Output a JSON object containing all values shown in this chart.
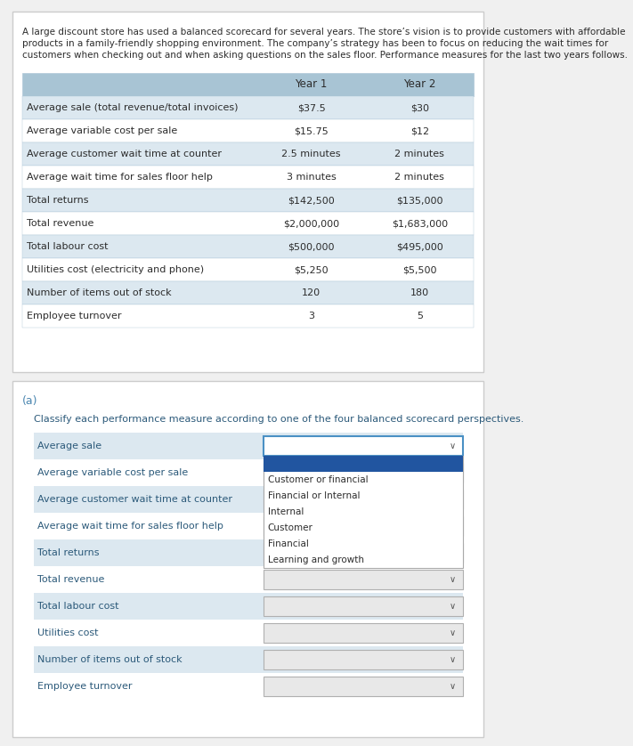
{
  "intro_text": "A large discount store has used a balanced scorecard for several years. The store’s vision is to provide customers with affordable\nproducts in a family-friendly shopping environment. The company’s strategy has been to focus on reducing the wait times for\ncustomers when checking out and when asking questions on the sales floor. Performance measures for the last two years follows.",
  "table_header": [
    "",
    "Year 1",
    "Year 2"
  ],
  "table_rows": [
    [
      "Average sale (total revenue/total invoices)",
      "$37.5",
      "$30"
    ],
    [
      "Average variable cost per sale",
      "$15.75",
      "$12"
    ],
    [
      "Average customer wait time at counter",
      "2.5 minutes",
      "2 minutes"
    ],
    [
      "Average wait time for sales floor help",
      "3 minutes",
      "2 minutes"
    ],
    [
      "Total returns",
      "$142,500",
      "$135,000"
    ],
    [
      "Total revenue",
      "$2,000,000",
      "$1,683,000"
    ],
    [
      "Total labour cost",
      "$500,000",
      "$495,000"
    ],
    [
      "Utilities cost (electricity and phone)",
      "$5,250",
      "$5,500"
    ],
    [
      "Number of items out of stock",
      "120",
      "180"
    ],
    [
      "Employee turnover",
      "3",
      "5"
    ]
  ],
  "section_a_label": "(a)",
  "section_a_instruction": "Classify each performance measure according to one of the four balanced scorecard perspectives.",
  "dropdown_rows": [
    "Average sale",
    "Average variable cost per sale",
    "Average customer wait time at counter",
    "Average wait time for sales floor help",
    "Total returns",
    "Total revenue",
    "Total labour cost",
    "Utilities cost",
    "Number of items out of stock",
    "Employee turnover"
  ],
  "dropdown_options": [
    "Customer or financial",
    "Financial or Internal",
    "Internal",
    "Customer",
    "Financial",
    "Learning and growth"
  ],
  "dropdown_open_index": 0,
  "bg_color_outer": "#f0f0f0",
  "bg_color_panel": "#ffffff",
  "bg_color_table_header": "#a8c4d4",
  "bg_color_table_row_alt": "#dce8f0",
  "bg_color_table_row_white": "#ffffff",
  "bg_color_section2": "#f7f7f7",
  "bg_color_dropdown_row_alt": "#dce8f0",
  "bg_color_dropdown_row_white": "#ffffff",
  "bg_color_dropdown_open": "#2155a0",
  "text_color_intro": "#2c2c2c",
  "text_color_header": "#2c2c2c",
  "text_color_table": "#2c2c2c",
  "text_color_section_a": "#4a86b0",
  "text_color_instruction": "#2c5a7a",
  "text_color_dropdown_label": "#2c5a7a",
  "text_color_dropdown_option": "#2c2c2c",
  "text_color_dropdown_option_white": "#ffffff",
  "border_color_table": "#b0c8d8",
  "border_color_dropdown": "#4a90c4",
  "font_size_intro": 7.5,
  "font_size_table_header": 8.5,
  "font_size_table_row": 8.0,
  "font_size_section_a": 9.0,
  "font_size_instruction": 8.0,
  "font_size_dropdown": 8.0
}
